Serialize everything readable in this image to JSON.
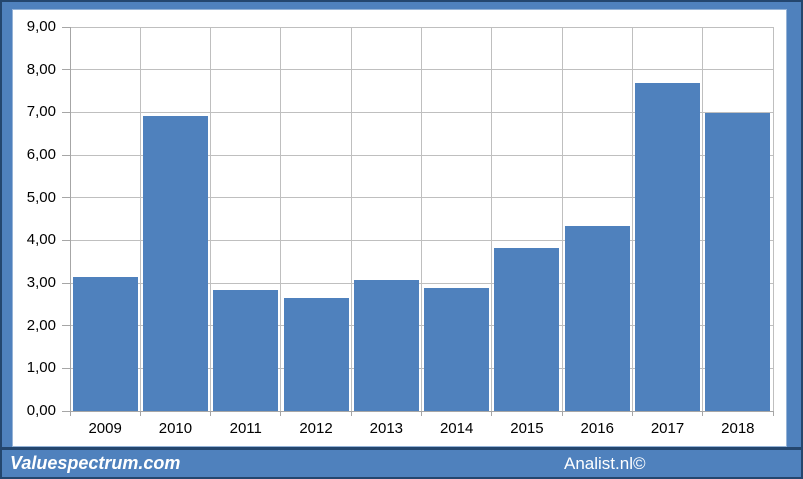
{
  "chart_data": {
    "type": "bar",
    "title": "",
    "xlabel": "",
    "ylabel": "",
    "categories": [
      "2009",
      "2010",
      "2011",
      "2012",
      "2013",
      "2014",
      "2015",
      "2016",
      "2017",
      "2018"
    ],
    "values": [
      3.15,
      6.92,
      2.84,
      2.64,
      3.07,
      2.88,
      3.81,
      4.34,
      7.68,
      6.98
    ],
    "ylim": [
      0,
      9
    ],
    "ytick_step": 1,
    "ytick_labels": [
      "0,00",
      "1,00",
      "2,00",
      "3,00",
      "4,00",
      "5,00",
      "6,00",
      "7,00",
      "8,00",
      "9,00"
    ],
    "grid": "horizontal and vertical gridlines on",
    "legend": "none",
    "bar_color": "#4F81BD",
    "gridline_color": "#BFBFBF",
    "axis_color": "#A6A6A6"
  },
  "footer": {
    "brand": "Valuespectrum.com",
    "credit": "Analist.nl©",
    "background": "#4F81BD",
    "border_color": "#24466E"
  },
  "frame": {
    "band_color": "#4F81BD",
    "outline_color": "#24466E",
    "canvas_color": "#FFFFFF"
  }
}
